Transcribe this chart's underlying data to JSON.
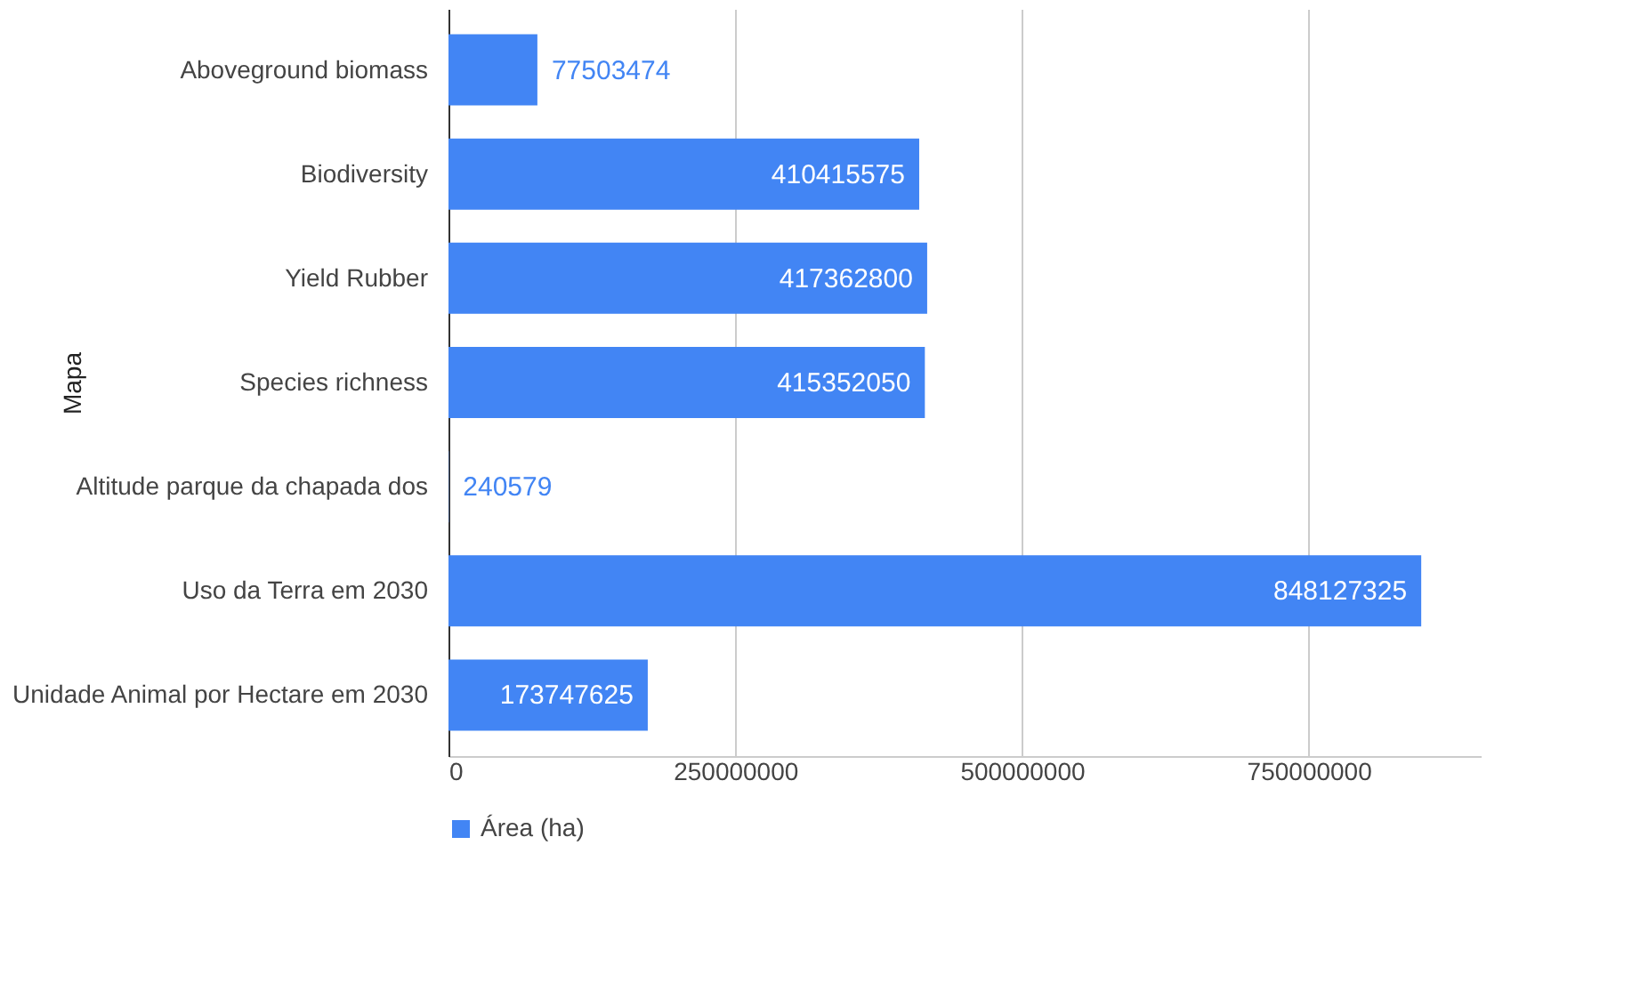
{
  "chart_data": {
    "type": "bar",
    "orientation": "horizontal",
    "ylabel": "Mapa",
    "categories": [
      "Aboveground biomass",
      "Biodiversity",
      "Yield Rubber",
      "Species richness",
      "Altitude parque da chapada dos",
      "Uso da Terra em 2030",
      "Unidade Animal por Hectare em 2030"
    ],
    "series": [
      {
        "name": "Área (ha)",
        "color": "#4285f4",
        "values": [
          77503474,
          410415575,
          417362800,
          415352050,
          240579,
          848127325,
          173747625
        ]
      }
    ],
    "xlim": [
      0,
      900000000
    ],
    "xticks": [
      0,
      250000000,
      500000000,
      750000000
    ],
    "grid": "x",
    "legend": "bottom",
    "data_labels": true
  }
}
